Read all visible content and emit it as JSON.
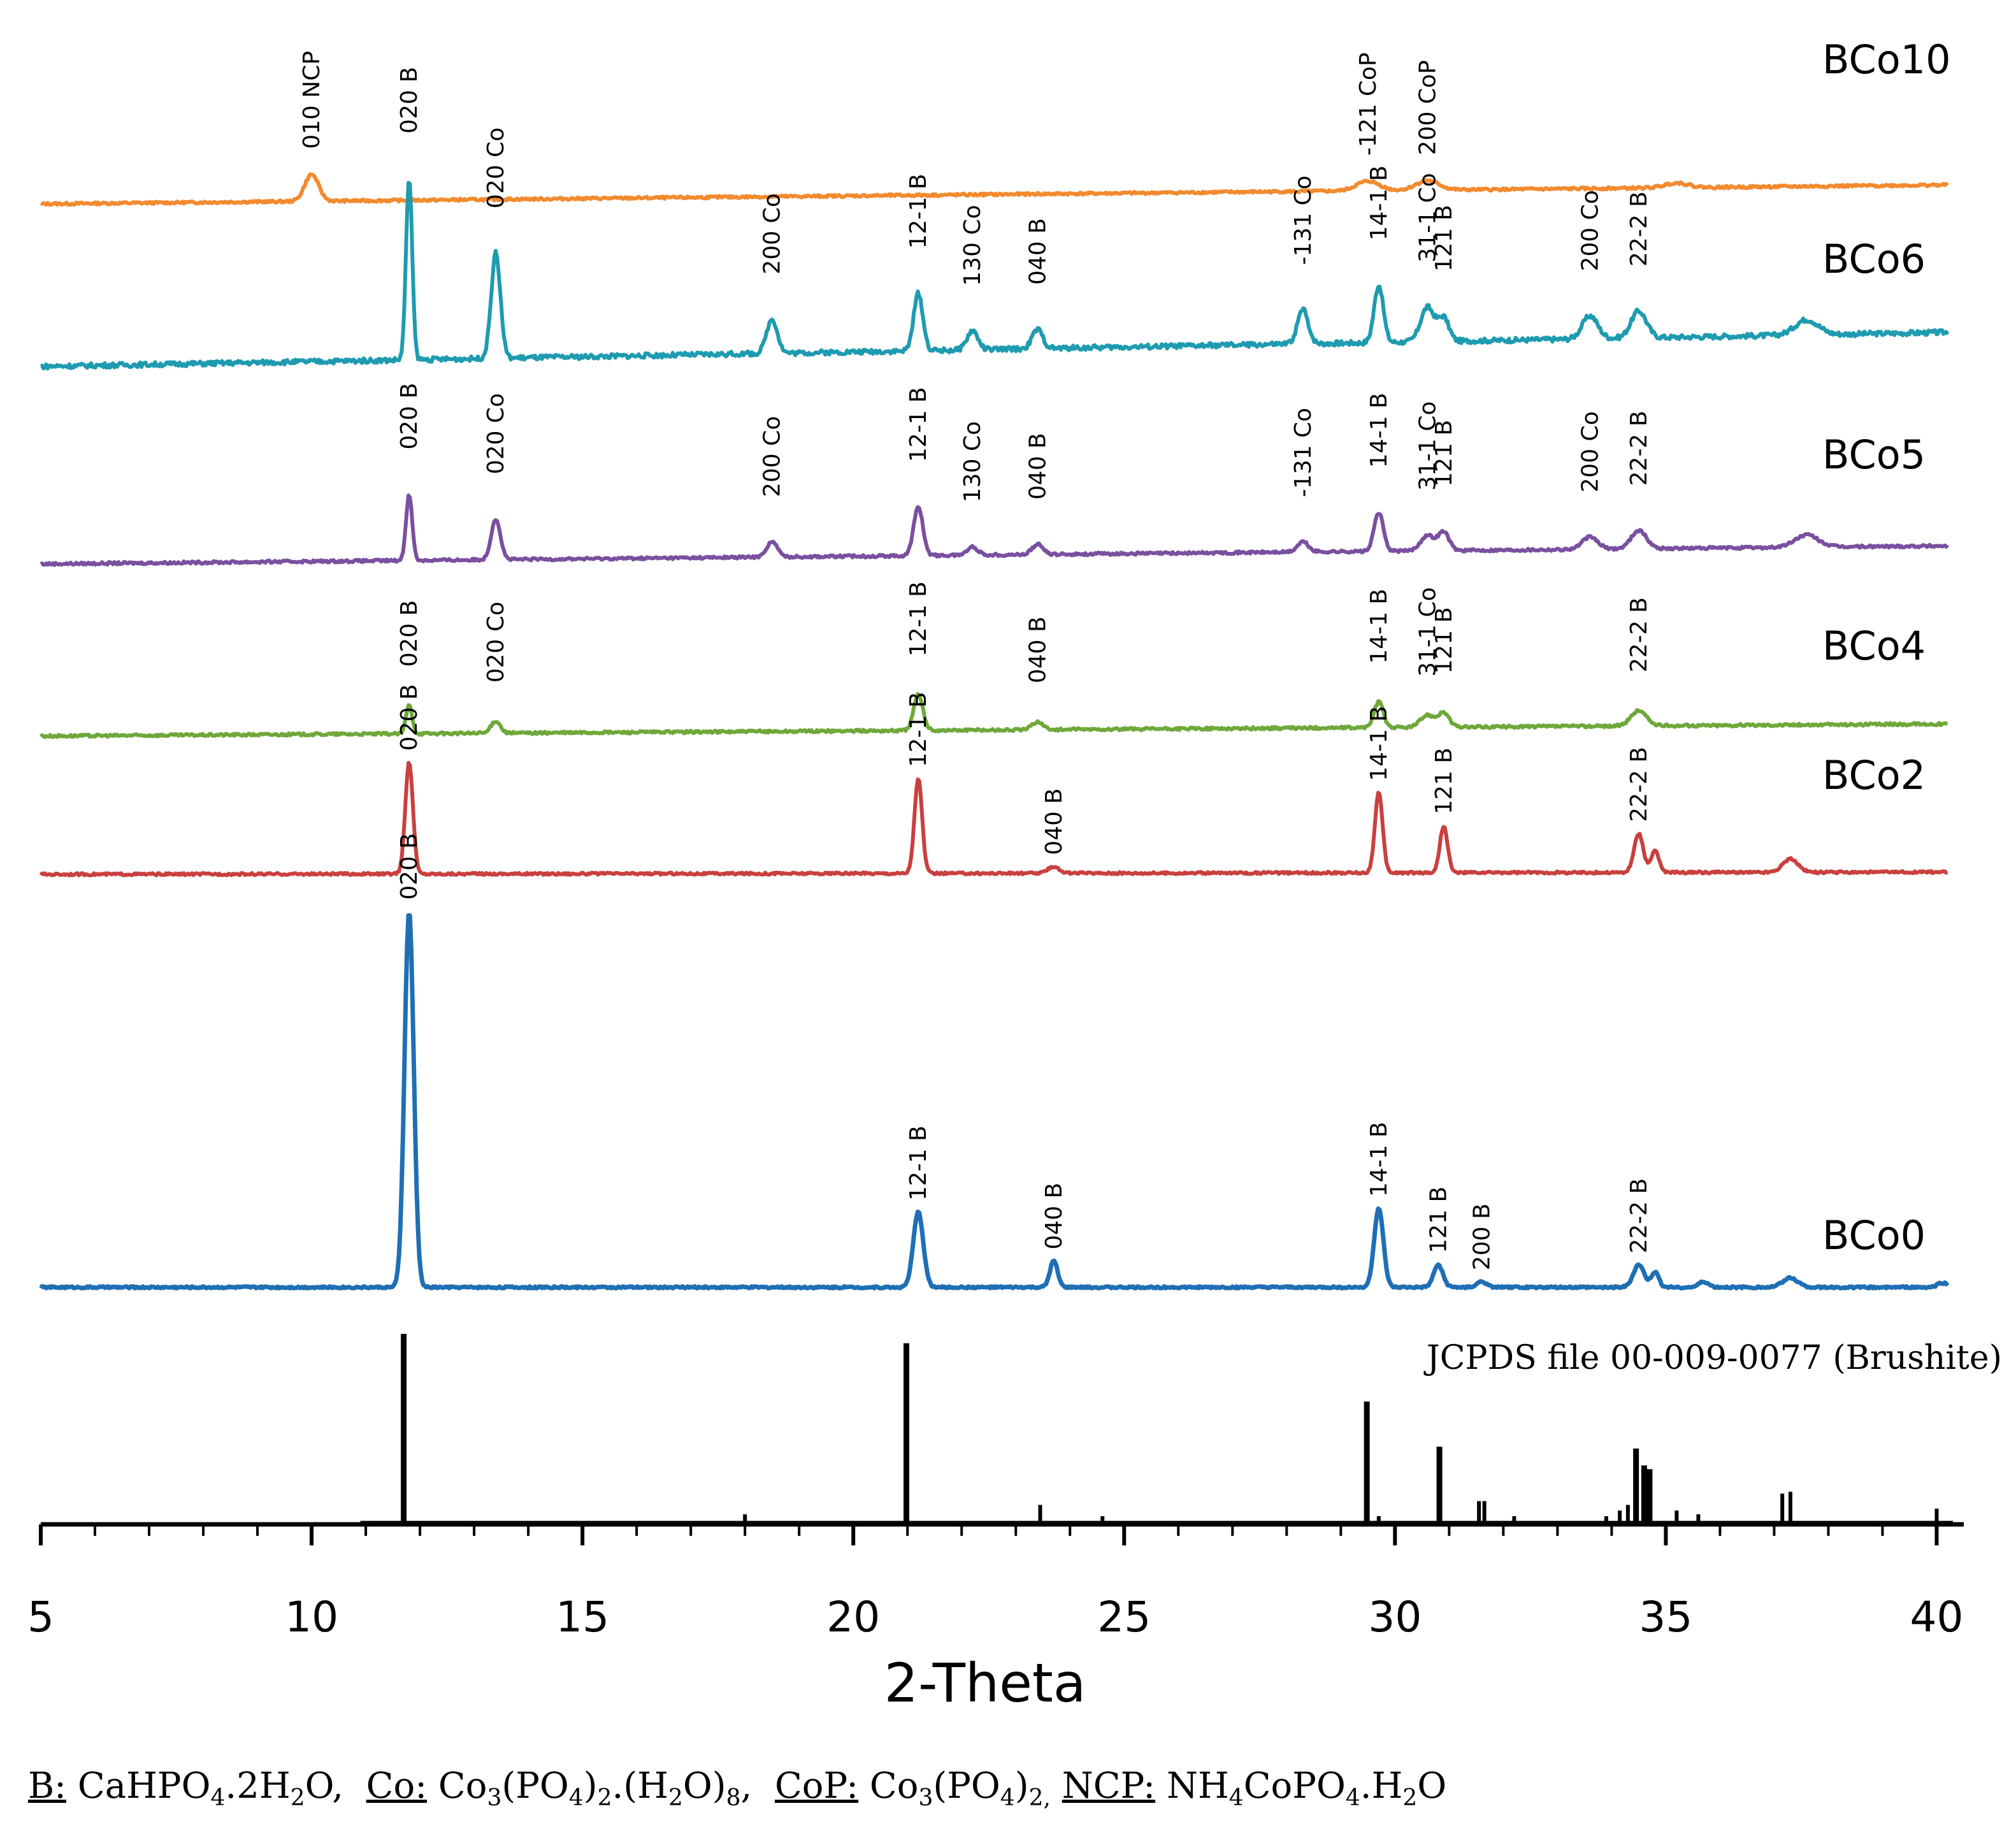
{
  "chart_data": {
    "type": "line",
    "title": "",
    "xlabel": "2-Theta",
    "ylabel": "",
    "xlim": [
      5,
      40.5
    ],
    "xticks": [
      5,
      10,
      15,
      20,
      25,
      30,
      35,
      40
    ],
    "grid": false,
    "series": [
      {
        "name": "BCo10",
        "color": "#f28a2e",
        "baseline_start": 0.0,
        "baseline_end": 0.2,
        "noise": 0.025,
        "peaks": [
          {
            "x": 10.0,
            "h": 0.28,
            "w": 0.18,
            "label": "010 NCP"
          },
          {
            "x": 29.5,
            "h": 0.1,
            "w": 0.3,
            "label": "-121 CoP"
          },
          {
            "x": 30.6,
            "h": 0.1,
            "w": 0.3,
            "label": "200 CoP"
          },
          {
            "x": 35.2,
            "h": 0.05,
            "w": 0.3,
            "label": ""
          }
        ]
      },
      {
        "name": "BCo6",
        "color": "#1e9bb0",
        "baseline_start": 0.0,
        "baseline_end": 0.18,
        "noise": 0.025,
        "peaks": [
          {
            "x": 11.8,
            "h": 0.95,
            "w": 0.08,
            "label": "020 B"
          },
          {
            "x": 13.4,
            "h": 0.55,
            "w": 0.12,
            "label": "020 Co"
          },
          {
            "x": 18.5,
            "h": 0.18,
            "w": 0.14,
            "label": "200 Co"
          },
          {
            "x": 21.2,
            "h": 0.3,
            "w": 0.12,
            "label": "12-1 B"
          },
          {
            "x": 22.2,
            "h": 0.1,
            "w": 0.14,
            "label": "130 Co"
          },
          {
            "x": 23.4,
            "h": 0.1,
            "w": 0.14,
            "label": "040 B"
          },
          {
            "x": 28.3,
            "h": 0.18,
            "w": 0.14,
            "label": "-131 Co"
          },
          {
            "x": 29.7,
            "h": 0.3,
            "w": 0.12,
            "label": "14-1 B"
          },
          {
            "x": 30.6,
            "h": 0.18,
            "w": 0.18,
            "label": "31-1 Co"
          },
          {
            "x": 30.9,
            "h": 0.12,
            "w": 0.14,
            "label": "121 B"
          },
          {
            "x": 33.6,
            "h": 0.12,
            "w": 0.2,
            "label": "200 Co"
          },
          {
            "x": 34.5,
            "h": 0.14,
            "w": 0.2,
            "label": "22-2 B"
          },
          {
            "x": 37.6,
            "h": 0.08,
            "w": 0.3,
            "label": ""
          }
        ]
      },
      {
        "name": "BCo5",
        "color": "#7a4fa0",
        "baseline_start": 0.0,
        "baseline_end": 0.18,
        "noise": 0.025,
        "peaks": [
          {
            "x": 11.8,
            "h": 0.65,
            "w": 0.08,
            "label": "020 B"
          },
          {
            "x": 13.4,
            "h": 0.4,
            "w": 0.12,
            "label": "020 Co"
          },
          {
            "x": 18.5,
            "h": 0.15,
            "w": 0.14,
            "label": "200 Co"
          },
          {
            "x": 21.2,
            "h": 0.48,
            "w": 0.12,
            "label": "12-1 B"
          },
          {
            "x": 22.2,
            "h": 0.08,
            "w": 0.14,
            "label": "130 Co"
          },
          {
            "x": 23.4,
            "h": 0.1,
            "w": 0.14,
            "label": "040 B"
          },
          {
            "x": 28.3,
            "h": 0.1,
            "w": 0.14,
            "label": "-131 Co"
          },
          {
            "x": 29.7,
            "h": 0.38,
            "w": 0.12,
            "label": "14-1 B"
          },
          {
            "x": 30.6,
            "h": 0.15,
            "w": 0.18,
            "label": "31-1 Co"
          },
          {
            "x": 30.9,
            "h": 0.18,
            "w": 0.14,
            "label": "121 B"
          },
          {
            "x": 33.6,
            "h": 0.12,
            "w": 0.2,
            "label": "200 Co"
          },
          {
            "x": 34.5,
            "h": 0.18,
            "w": 0.2,
            "label": "22-2 B"
          },
          {
            "x": 37.6,
            "h": 0.12,
            "w": 0.3,
            "label": ""
          }
        ]
      },
      {
        "name": "BCo4",
        "color": "#6fa83a",
        "baseline_start": 0.0,
        "baseline_end": 0.12,
        "noise": 0.025,
        "peaks": [
          {
            "x": 11.8,
            "h": 0.28,
            "w": 0.08,
            "label": "020 B"
          },
          {
            "x": 13.4,
            "h": 0.12,
            "w": 0.12,
            "label": "020 Co"
          },
          {
            "x": 21.2,
            "h": 0.35,
            "w": 0.12,
            "label": "12-1 B"
          },
          {
            "x": 23.4,
            "h": 0.08,
            "w": 0.14,
            "label": "040 B"
          },
          {
            "x": 29.7,
            "h": 0.25,
            "w": 0.12,
            "label": "14-1 B"
          },
          {
            "x": 30.6,
            "h": 0.12,
            "w": 0.18,
            "label": "31-1 Co"
          },
          {
            "x": 30.9,
            "h": 0.14,
            "w": 0.14,
            "label": "121 B"
          },
          {
            "x": 34.5,
            "h": 0.15,
            "w": 0.2,
            "label": "22-2 B"
          }
        ]
      },
      {
        "name": "BCo2",
        "color": "#c9403e",
        "baseline_start": 0.0,
        "baseline_end": 0.02,
        "noise": 0.02,
        "peaks": [
          {
            "x": 11.8,
            "h": 1.0,
            "w": 0.1,
            "label": "020 B"
          },
          {
            "x": 21.2,
            "h": 0.85,
            "w": 0.1,
            "label": "12-1 B"
          },
          {
            "x": 23.7,
            "h": 0.06,
            "w": 0.14,
            "label": "040 B"
          },
          {
            "x": 29.7,
            "h": 0.72,
            "w": 0.1,
            "label": "14-1 B"
          },
          {
            "x": 30.9,
            "h": 0.42,
            "w": 0.1,
            "label": "121 B"
          },
          {
            "x": 34.5,
            "h": 0.35,
            "w": 0.12,
            "label": "22-2 B"
          },
          {
            "x": 34.8,
            "h": 0.2,
            "w": 0.1,
            "label": ""
          },
          {
            "x": 37.3,
            "h": 0.12,
            "w": 0.2,
            "label": ""
          }
        ]
      },
      {
        "name": "BCo0",
        "color": "#1f6fb4",
        "baseline_start": 0.0,
        "baseline_end": 0.0,
        "noise": 0.005,
        "peaks": [
          {
            "x": 11.8,
            "h": 1.0,
            "w": 0.12,
            "label": "020 B"
          },
          {
            "x": 21.2,
            "h": 0.2,
            "w": 0.13,
            "label": "12-1 B"
          },
          {
            "x": 23.7,
            "h": 0.07,
            "w": 0.1,
            "label": "040 B"
          },
          {
            "x": 29.7,
            "h": 0.21,
            "w": 0.12,
            "label": "14-1 B"
          },
          {
            "x": 30.8,
            "h": 0.06,
            "w": 0.12,
            "label": "121 B"
          },
          {
            "x": 31.6,
            "h": 0.015,
            "w": 0.12,
            "label": "200 B"
          },
          {
            "x": 34.5,
            "h": 0.06,
            "w": 0.14,
            "label": "22-2 B"
          },
          {
            "x": 34.8,
            "h": 0.04,
            "w": 0.1,
            "label": ""
          },
          {
            "x": 35.7,
            "h": 0.015,
            "w": 0.12,
            "label": ""
          },
          {
            "x": 37.3,
            "h": 0.025,
            "w": 0.2,
            "label": ""
          },
          {
            "x": 40.1,
            "h": 0.012,
            "w": 0.12,
            "label": ""
          }
        ]
      }
    ],
    "reference": {
      "name": "JCPDS file 00-009-0077 (Brushite)",
      "lines": [
        {
          "x": 11.7,
          "i": 100
        },
        {
          "x": 20.98,
          "i": 95
        },
        {
          "x": 29.48,
          "i": 64
        },
        {
          "x": 30.82,
          "i": 40
        },
        {
          "x": 34.45,
          "i": 39
        },
        {
          "x": 34.6,
          "i": 30
        },
        {
          "x": 34.7,
          "i": 28
        },
        {
          "x": 37.3,
          "i": 16
        },
        {
          "x": 37.15,
          "i": 15
        },
        {
          "x": 31.55,
          "i": 11
        },
        {
          "x": 31.65,
          "i": 11
        },
        {
          "x": 23.45,
          "i": 9
        },
        {
          "x": 34.3,
          "i": 9
        },
        {
          "x": 40.0,
          "i": 7
        },
        {
          "x": 34.15,
          "i": 6
        },
        {
          "x": 35.2,
          "i": 6
        },
        {
          "x": 35.6,
          "i": 4
        },
        {
          "x": 18.0,
          "i": 4
        },
        {
          "x": 24.6,
          "i": 3
        },
        {
          "x": 33.9,
          "i": 3
        },
        {
          "x": 32.2,
          "i": 3
        },
        {
          "x": 29.7,
          "i": 3
        }
      ]
    }
  },
  "legend": {
    "B_key": "B:",
    "B_formula_main": "CaHPO",
    "B_formula_sub": "4",
    "B_formula_tail": ".2H",
    "B_formula_sub2": "2",
    "B_formula_end": "O,",
    "Co_key": "Co:",
    "Co_f1": "Co",
    "Co_s1": "3",
    "Co_f2": "(PO",
    "Co_s2": "4",
    "Co_f3": ")",
    "Co_s3": "2",
    "Co_f4": ".(H",
    "Co_s4": "2",
    "Co_f5": "O)",
    "Co_s5": "8",
    "Co_f6": ",",
    "CoP_key": "CoP:",
    "CoP_f1": "Co",
    "CoP_s1": "3",
    "CoP_f2": "(PO",
    "CoP_s2": "4",
    "CoP_f3": ")",
    "CoP_s3": "2,",
    "NCP_key": "NCP:",
    "NCP_f1": "NH",
    "NCP_s1": "4",
    "NCP_f2": "CoPO",
    "NCP_s2": "4",
    "NCP_f3": ".H",
    "NCP_s3": "2",
    "NCP_f4": "O"
  }
}
